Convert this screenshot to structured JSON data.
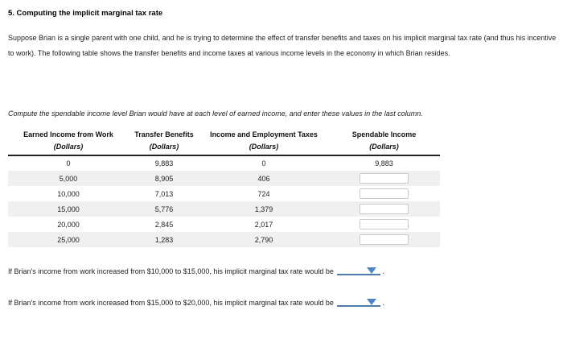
{
  "page": {
    "title": "5. Computing the implicit marginal tax rate",
    "intro": "Suppose Brian is a single parent with one child, and he is trying to determine the effect of transfer benefits and taxes on his implicit marginal tax rate (and thus his incentive to work). The following table shows the transfer benefits and income taxes at various income levels in the economy in which Brian resides.",
    "instruction": "Compute the spendable income level Brian would have at each level of earned income, and enter these values in the last column."
  },
  "table": {
    "columns": [
      {
        "label": "Earned Income from Work",
        "sublabel": "(Dollars)"
      },
      {
        "label": "Transfer Benefits",
        "sublabel": "(Dollars)"
      },
      {
        "label": "Income and Employment Taxes",
        "sublabel": "(Dollars)"
      },
      {
        "label": "Spendable Income",
        "sublabel": "(Dollars)"
      }
    ],
    "rows": [
      {
        "earned_income": "0",
        "transfer_benefits": "9,883",
        "taxes": "0",
        "spendable_income": "9,883",
        "has_input": false
      },
      {
        "earned_income": "5,000",
        "transfer_benefits": "8,905",
        "taxes": "406",
        "spendable_income": "",
        "has_input": true
      },
      {
        "earned_income": "10,000",
        "transfer_benefits": "7,013",
        "taxes": "724",
        "spendable_income": "",
        "has_input": true
      },
      {
        "earned_income": "15,000",
        "transfer_benefits": "5,776",
        "taxes": "1,379",
        "spendable_income": "",
        "has_input": true
      },
      {
        "earned_income": "20,000",
        "transfer_benefits": "2,845",
        "taxes": "2,017",
        "spendable_income": "",
        "has_input": true
      },
      {
        "earned_income": "25,000",
        "transfer_benefits": "1,283",
        "taxes": "2,790",
        "spendable_income": "",
        "has_input": true
      }
    ]
  },
  "questions": [
    {
      "text_before": "If Brian's income from work increased from $10,000 to $15,000, his implicit marginal tax rate would be",
      "dropdown_value": "",
      "text_after": "."
    },
    {
      "text_before": "If Brian's income from work increased from $15,000 to $20,000, his implicit marginal tax rate would be",
      "dropdown_value": "",
      "text_after": "."
    }
  ],
  "colors": {
    "accent_blue": "#4d87c7",
    "underline_blue": "#4e7caa",
    "row_alt": "#f0f0f0",
    "header_rule": "#222222"
  }
}
